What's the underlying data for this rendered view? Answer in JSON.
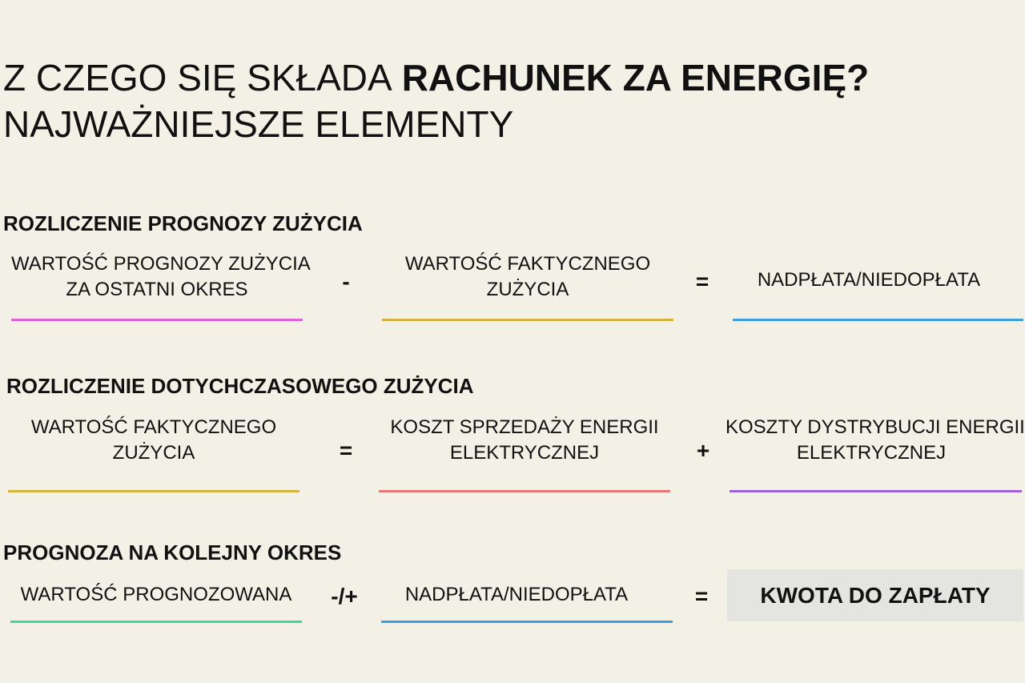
{
  "header": {
    "title_regular": "Z CZEGO SIĘ SKŁADA",
    "title_bold": "RACHUNEK ZA ENERGIĘ?",
    "subtitle": "NAJWAŻNIEJSZE ELEMENTY"
  },
  "sections": [
    {
      "heading": "ROZLICZENIE PROGNOZY ZUŻYCIA",
      "terms": [
        [
          "WARTOŚĆ PROGNOZY ZUŻYCIA",
          "ZA OSTATNI OKRES"
        ],
        [
          "WARTOŚĆ FAKTYCZNEGO",
          "ZUŻYCIA"
        ],
        [
          "NADPŁATA/NIEDOPŁATA"
        ]
      ],
      "operators": [
        "-",
        "="
      ]
    },
    {
      "heading": "ROZLICZENIE DOTYCHCZASOWEGO ZUŻYCIA",
      "terms": [
        [
          "WARTOŚĆ FAKTYCZNEGO",
          "ZUŻYCIA"
        ],
        [
          "KOSZT SPRZEDAŻY ENERGII",
          "ELEKTRYCZNEJ"
        ],
        [
          "KOSZTY DYSTRYBUCJI ENERGII",
          "ELEKTRYCZNEJ"
        ]
      ],
      "operators": [
        "=",
        "+"
      ]
    },
    {
      "heading": "PROGNOZA NA KOLEJNY OKRES",
      "terms": [
        [
          "WARTOŚĆ PROGNOZOWANA"
        ],
        [
          "NADPŁATA/NIEDOPŁATA"
        ],
        [
          "KWOTA DO ZAPŁATY"
        ]
      ],
      "operators": [
        "-/+",
        "="
      ]
    }
  ]
}
